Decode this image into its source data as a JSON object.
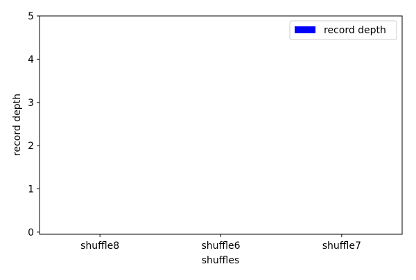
{
  "chart_data": {
    "type": "bar",
    "categories": [
      "shuffle8",
      "shuffle6",
      "shuffle7"
    ],
    "series": [
      {
        "name": "record depth",
        "values": [
          0,
          0,
          0
        ],
        "color": "#0000ff"
      }
    ],
    "xlabel": "shuffles",
    "ylabel": "record depth",
    "ylim": [
      -0.05,
      5
    ],
    "yticks": [
      0,
      1,
      2,
      3,
      4,
      5
    ],
    "grid": false,
    "legend_position": "top-right"
  }
}
